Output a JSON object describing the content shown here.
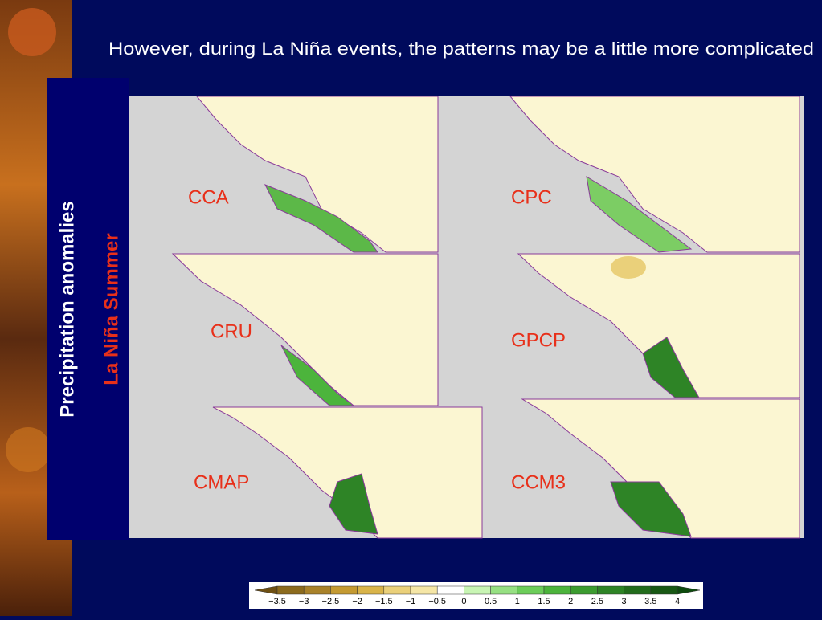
{
  "header": {
    "title": "However, during La Niña events, the patterns may be a little more complicated"
  },
  "side": {
    "label": "Precipitation anomalies",
    "sublabel": "La Niña Summer"
  },
  "maps": [
    {
      "label": "CCA"
    },
    {
      "label": "CPC"
    },
    {
      "label": "CRU"
    },
    {
      "label": "GPCP"
    },
    {
      "label": "CMAP"
    },
    {
      "label": "CCM3"
    }
  ],
  "colorbar": {
    "labels": [
      "−3.5",
      "−3",
      "−2.5",
      "−2",
      "−1.5",
      "−1",
      "−0.5",
      "0",
      "0.5",
      "1",
      "1.5",
      "2",
      "2.5",
      "3",
      "3.5",
      "4"
    ],
    "colors": [
      "#8c6b1e",
      "#a9822a",
      "#c49a32",
      "#d9b44a",
      "#ead07a",
      "#f5e6a6",
      "#ffffff",
      "#c8f5b4",
      "#96e082",
      "#6ccd5a",
      "#4cb43c",
      "#3c9c30",
      "#2e8426",
      "#226c1c",
      "#185814"
    ],
    "low_color": "#6e5014",
    "high_color": "#0e4a0e"
  }
}
